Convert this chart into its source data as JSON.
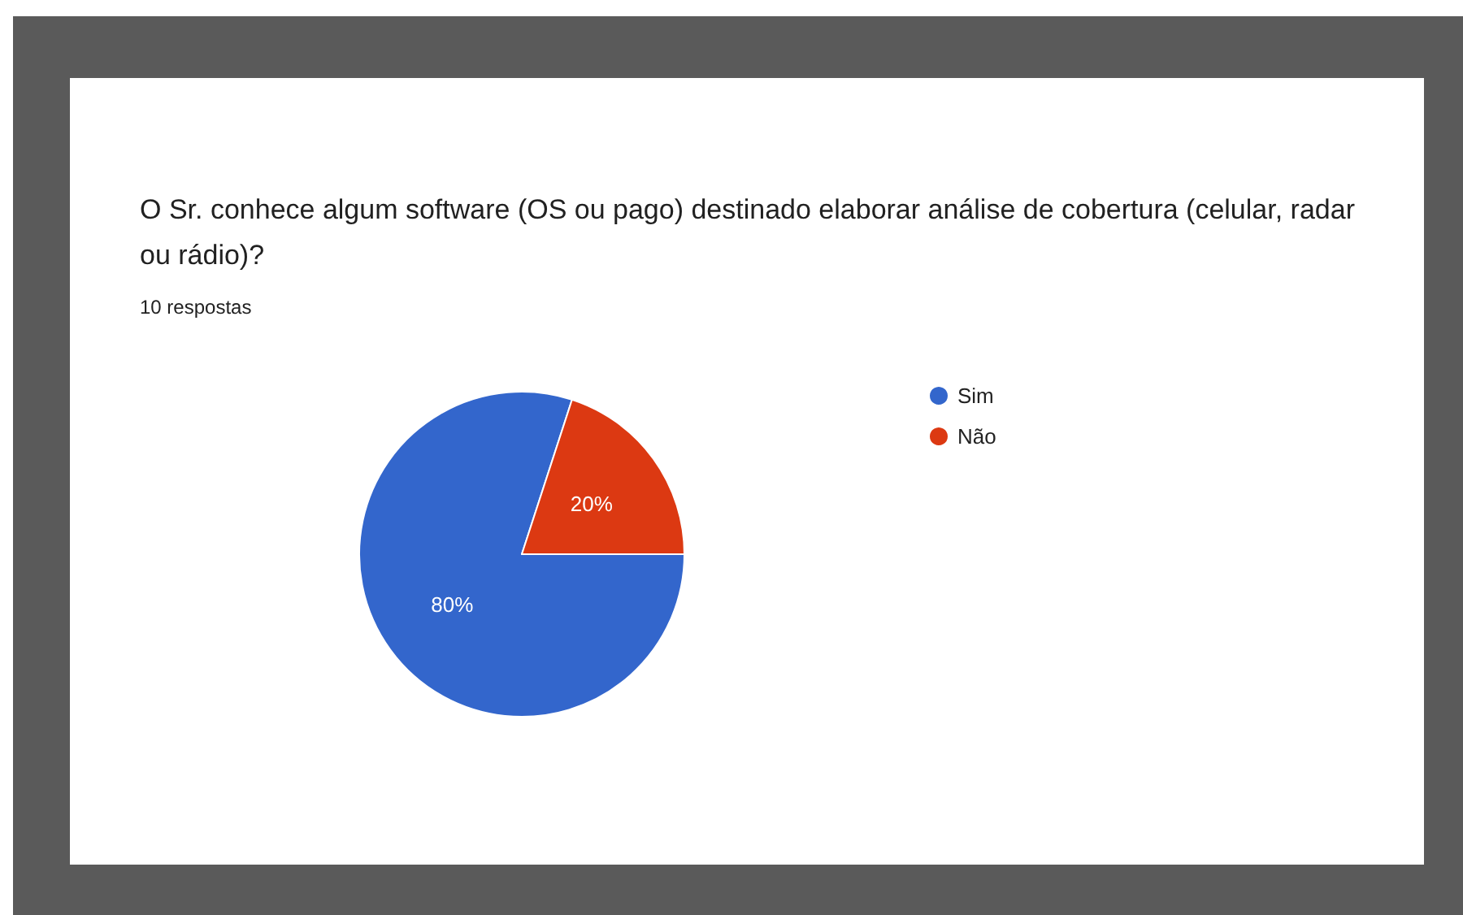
{
  "chart_data": {
    "type": "pie",
    "title": "O Sr. conhece algum software (OS ou pago) destinado elaborar análise de cobertura (celular, radar ou rádio)?",
    "subtitle": "10 respostas",
    "categories": [
      "Sim",
      "Não"
    ],
    "values": [
      80,
      20
    ],
    "colors": [
      "#3366cc",
      "#dc3912"
    ],
    "value_labels": [
      "80%",
      "20%"
    ],
    "legend": "right"
  }
}
